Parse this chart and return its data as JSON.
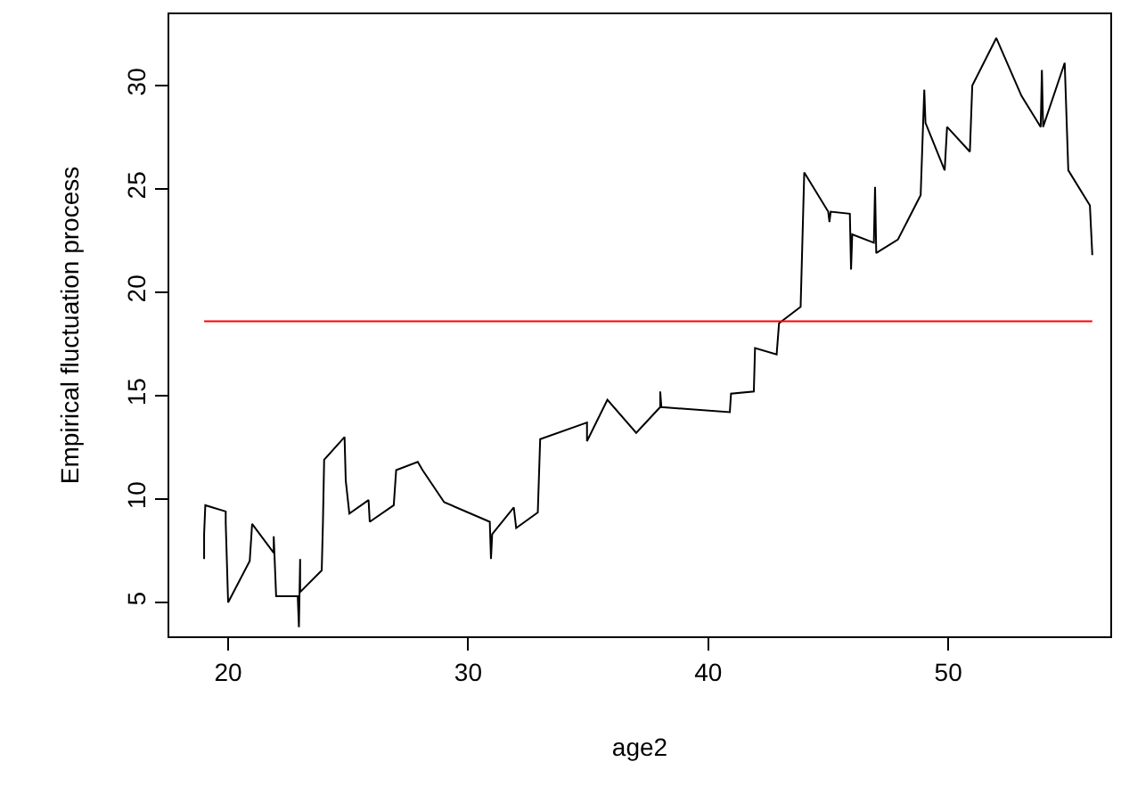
{
  "chart_data": {
    "type": "line",
    "xlabel": "age2",
    "ylabel": "Empirical fluctuation process",
    "x": [
      19.0,
      19.0,
      19.05,
      19.9,
      19.9,
      20.0,
      20.9,
      21.0,
      21.9,
      21.9,
      22.0,
      22.9,
      22.95,
      23.0,
      23.0,
      23.9,
      23.95,
      24.0,
      24.85,
      24.9,
      25.05,
      25.85,
      25.9,
      26.9,
      27.0,
      27.9,
      28.1,
      29.0,
      30.9,
      30.95,
      31.0,
      31.9,
      32.0,
      32.9,
      33.0,
      34.95,
      34.95,
      35.8,
      37.0,
      38.0,
      38.0,
      38.05,
      40.9,
      40.95,
      41.9,
      41.95,
      42.85,
      42.95,
      43.85,
      44.0,
      45.0,
      45.05,
      45.1,
      45.9,
      45.95,
      46.0,
      46.9,
      46.95,
      47.0,
      47.9,
      48.85,
      49.0,
      49.05,
      49.85,
      49.95,
      50.9,
      51.0,
      52.0,
      53.05,
      53.85,
      53.9,
      53.95,
      54.85,
      55.0,
      55.9,
      56.0
    ],
    "series": [
      {
        "color": "#000000",
        "values": [
          7.1,
          8.3,
          9.7,
          9.4,
          8.85,
          5.0,
          7.0,
          8.8,
          7.4,
          8.2,
          5.3,
          5.3,
          3.8,
          7.1,
          5.5,
          6.55,
          8.85,
          11.9,
          13.0,
          10.9,
          9.3,
          9.95,
          8.9,
          9.7,
          11.4,
          11.8,
          11.4,
          9.85,
          8.9,
          7.1,
          8.3,
          9.6,
          8.6,
          9.35,
          12.9,
          13.7,
          12.8,
          14.8,
          13.2,
          14.45,
          15.2,
          14.45,
          14.2,
          15.1,
          15.2,
          17.3,
          17.0,
          18.5,
          19.3,
          25.8,
          23.9,
          23.4,
          23.9,
          23.8,
          21.1,
          22.8,
          22.4,
          25.1,
          21.9,
          22.55,
          24.7,
          29.8,
          28.2,
          25.9,
          28.0,
          26.8,
          30.0,
          32.3,
          29.5,
          28.0,
          30.75,
          28.0,
          31.1,
          25.9,
          24.2,
          21.8
        ]
      }
    ],
    "xlim": [
      17.55,
      56.75
    ],
    "ylim": [
      3.36,
      33.45
    ],
    "xticks": [
      20,
      30,
      40,
      50
    ],
    "yticks": [
      5,
      10,
      15,
      20,
      25,
      30
    ],
    "ref_lines": [
      {
        "axis": "y",
        "value": 18.6,
        "color": "#ff0000"
      }
    ],
    "grid": false,
    "legend": false,
    "line_style": "solid",
    "marker": "none"
  }
}
